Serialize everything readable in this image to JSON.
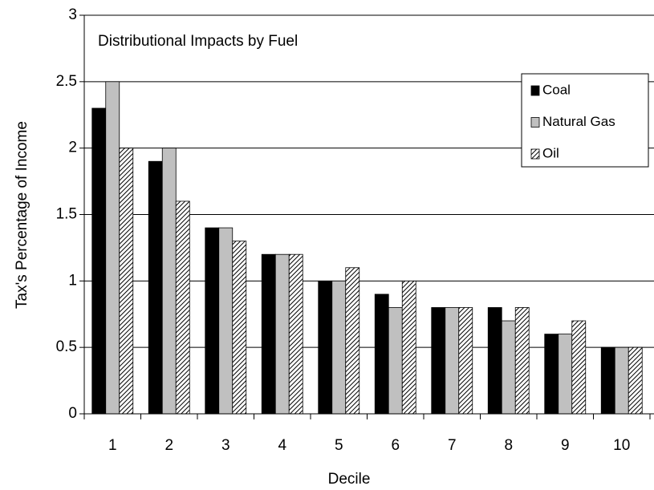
{
  "chart_data": {
    "type": "bar",
    "title": "Distributional Impacts by Fuel",
    "x_label": "Decile",
    "y_label": "Tax's Percentage of Income",
    "categories": [
      "1",
      "2",
      "3",
      "4",
      "5",
      "6",
      "7",
      "8",
      "9",
      "10"
    ],
    "series": [
      {
        "name": "Coal",
        "color": "#000000",
        "values": [
          2.3,
          1.9,
          1.4,
          1.2,
          1.0,
          0.9,
          0.8,
          0.8,
          0.6,
          0.5
        ]
      },
      {
        "name": "Natural Gas",
        "color": "#c0c0c0",
        "values": [
          2.5,
          2.0,
          1.4,
          1.2,
          1.0,
          0.8,
          0.8,
          0.7,
          0.6,
          0.5
        ]
      },
      {
        "name": "Oil",
        "color": "#ffffff",
        "hatch": true,
        "values": [
          2.0,
          1.6,
          1.3,
          1.2,
          1.1,
          1.0,
          0.8,
          0.8,
          0.7,
          0.5
        ]
      }
    ],
    "ylim": [
      0,
      3
    ],
    "yticks": [
      0,
      0.5,
      1,
      1.5,
      2,
      2.5,
      3
    ],
    "grid": true,
    "legend": "upper right"
  }
}
